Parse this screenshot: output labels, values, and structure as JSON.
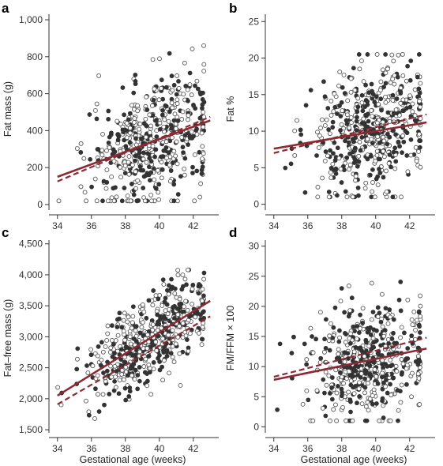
{
  "chart_data": [
    {
      "panel": "a",
      "type": "scatter",
      "xlabel": "",
      "ylabel": "Fat mass (g)",
      "xlim": [
        33.5,
        43.5
      ],
      "ylim": [
        -30,
        1030
      ],
      "x_ticks": [
        34,
        36,
        38,
        40,
        42
      ],
      "y_ticks": [
        0,
        200,
        400,
        600,
        800,
        1000
      ],
      "y_tick_labels": [
        "0",
        "200",
        "400",
        "600",
        "800",
        "1,000"
      ],
      "trend_lines": [
        {
          "style": "solid",
          "x": [
            34,
            43
          ],
          "y": [
            150,
            455
          ]
        },
        {
          "style": "dashed",
          "x": [
            34,
            43
          ],
          "y": [
            125,
            475
          ]
        }
      ],
      "scatter_params": {
        "seed": 11,
        "x_center": 39.6,
        "x_spread": 1.8,
        "y_noise": 160,
        "y_min": 20,
        "y_max": 860,
        "n": 520
      }
    },
    {
      "panel": "b",
      "type": "scatter",
      "xlabel": "",
      "ylabel": "Fat %",
      "xlim": [
        33.5,
        43.5
      ],
      "ylim": [
        -0.8,
        26
      ],
      "x_ticks": [
        34,
        36,
        38,
        40,
        42
      ],
      "y_ticks": [
        0,
        5,
        10,
        15,
        20,
        25
      ],
      "y_tick_labels": [
        "0",
        "5",
        "10",
        "15",
        "20",
        "25"
      ],
      "trend_lines": [
        {
          "style": "solid",
          "x": [
            34,
            43
          ],
          "y": [
            7.6,
            11.2
          ]
        },
        {
          "style": "dashed",
          "x": [
            34,
            43
          ],
          "y": [
            7.0,
            12.3
          ]
        }
      ],
      "scatter_params": {
        "seed": 23,
        "x_center": 39.6,
        "x_spread": 1.8,
        "y_noise": 4.3,
        "y_min": 1,
        "y_max": 20.5,
        "n": 520
      }
    },
    {
      "panel": "c",
      "type": "scatter",
      "xlabel": "Gestational age (weeks)",
      "ylabel": "Fat–free mass (g)",
      "xlim": [
        33.5,
        43.5
      ],
      "ylim": [
        1450,
        4560
      ],
      "x_ticks": [
        34,
        36,
        38,
        40,
        42
      ],
      "y_ticks": [
        1500,
        2000,
        2500,
        3000,
        3500,
        4000,
        4500
      ],
      "y_tick_labels": [
        "1,500",
        "2,000",
        "2,500",
        "3,000",
        "3,500",
        "4,000",
        "4,500"
      ],
      "trend_lines": [
        {
          "style": "solid",
          "x": [
            34,
            43
          ],
          "y": [
            2050,
            3580
          ]
        },
        {
          "style": "dashed",
          "x": [
            34,
            43
          ],
          "y": [
            1910,
            3330
          ]
        }
      ],
      "scatter_params": {
        "seed": 37,
        "x_center": 39.6,
        "x_spread": 1.8,
        "y_noise": 330,
        "y_min": 1680,
        "y_max": 4080,
        "n": 520
      }
    },
    {
      "panel": "d",
      "type": "scatter",
      "xlabel": "Gestational age (weeks)",
      "ylabel": "FM/FFM × 100",
      "xlim": [
        33.5,
        43.5
      ],
      "ylim": [
        -1,
        31
      ],
      "x_ticks": [
        34,
        36,
        38,
        40,
        42
      ],
      "y_ticks": [
        0,
        5,
        10,
        15,
        20,
        25,
        30
      ],
      "y_tick_labels": [
        "0",
        "5",
        "10",
        "15",
        "20",
        "25",
        "30"
      ],
      "trend_lines": [
        {
          "style": "solid",
          "x": [
            34,
            43
          ],
          "y": [
            7.8,
            13.0
          ]
        },
        {
          "style": "dashed",
          "x": [
            34,
            43
          ],
          "y": [
            8.3,
            14.8
          ]
        }
      ],
      "scatter_params": {
        "seed": 53,
        "x_center": 39.6,
        "x_spread": 1.8,
        "y_noise": 5.2,
        "y_min": 1,
        "y_max": 26,
        "n": 520
      }
    }
  ],
  "colors": {
    "filled_point": "#333333",
    "open_point_stroke": "#555555",
    "trend_line": "#8c2a34"
  }
}
